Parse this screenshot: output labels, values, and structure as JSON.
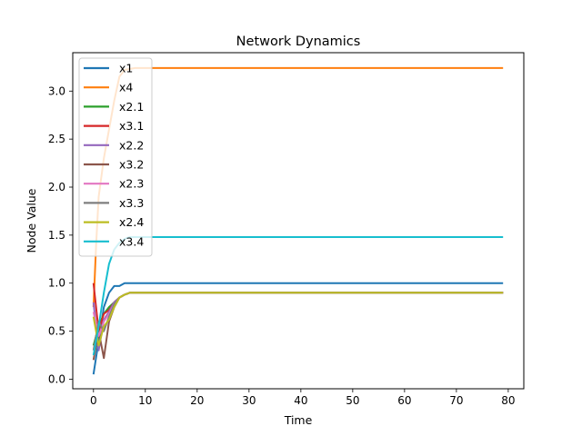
{
  "chart_data": {
    "type": "line",
    "title": "Network Dynamics",
    "xlabel": "Time",
    "ylabel": "Node Value",
    "xlim": [
      -4,
      83
    ],
    "ylim": [
      -0.1,
      3.4
    ],
    "xticks": [
      0,
      10,
      20,
      30,
      40,
      50,
      60,
      70,
      80
    ],
    "yticks": [
      0.0,
      0.5,
      1.0,
      1.5,
      2.0,
      2.5,
      3.0
    ],
    "ytick_labels": [
      "0.0",
      "0.5",
      "1.0",
      "1.5",
      "2.0",
      "2.5",
      "3.0"
    ],
    "grid": false,
    "legend": "top-left",
    "series": [
      {
        "name": "x1",
        "color": "#1f77b4",
        "points": [
          [
            0,
            0.05
          ],
          [
            1,
            0.4
          ],
          [
            2,
            0.75
          ],
          [
            3,
            0.9
          ],
          [
            4,
            0.97
          ],
          [
            5,
            0.97
          ],
          [
            6,
            1.0
          ],
          [
            8,
            1.0
          ],
          [
            79,
            1.0
          ]
        ]
      },
      {
        "name": "x4",
        "color": "#ff7f0e",
        "points": [
          [
            0,
            0.75
          ],
          [
            0.5,
            1.4
          ],
          [
            1,
            1.9
          ],
          [
            2,
            2.3
          ],
          [
            3,
            2.6
          ],
          [
            4,
            2.9
          ],
          [
            5,
            3.15
          ],
          [
            6,
            3.22
          ],
          [
            8,
            3.24
          ],
          [
            79,
            3.24
          ]
        ]
      },
      {
        "name": "x2.1",
        "color": "#2ca02c",
        "points": [
          [
            0,
            0.35
          ],
          [
            1,
            0.55
          ],
          [
            2,
            0.68
          ],
          [
            3,
            0.75
          ],
          [
            4,
            0.8
          ],
          [
            5,
            0.85
          ],
          [
            6,
            0.88
          ],
          [
            7,
            0.9
          ],
          [
            8,
            0.9
          ],
          [
            79,
            0.9
          ]
        ]
      },
      {
        "name": "x3.1",
        "color": "#d62728",
        "points": [
          [
            0,
            1.0
          ],
          [
            1,
            0.5
          ],
          [
            2,
            0.68
          ],
          [
            3,
            0.72
          ],
          [
            4,
            0.8
          ],
          [
            5,
            0.85
          ],
          [
            6,
            0.88
          ],
          [
            7,
            0.9
          ],
          [
            79,
            0.9
          ]
        ]
      },
      {
        "name": "x2.2",
        "color": "#9467bd",
        "points": [
          [
            0,
            0.8
          ],
          [
            1,
            0.3
          ],
          [
            2,
            0.62
          ],
          [
            3,
            0.7
          ],
          [
            4,
            0.8
          ],
          [
            5,
            0.85
          ],
          [
            6,
            0.88
          ],
          [
            7,
            0.9
          ],
          [
            79,
            0.9
          ]
        ]
      },
      {
        "name": "x3.2",
        "color": "#8c564b",
        "points": [
          [
            0,
            0.2
          ],
          [
            1,
            0.5
          ],
          [
            2,
            0.22
          ],
          [
            3,
            0.6
          ],
          [
            4,
            0.75
          ],
          [
            5,
            0.85
          ],
          [
            6,
            0.88
          ],
          [
            7,
            0.9
          ],
          [
            79,
            0.9
          ]
        ]
      },
      {
        "name": "x2.3",
        "color": "#e377c2",
        "points": [
          [
            0,
            0.7
          ],
          [
            1,
            0.45
          ],
          [
            2,
            0.6
          ],
          [
            3,
            0.68
          ],
          [
            4,
            0.78
          ],
          [
            5,
            0.85
          ],
          [
            6,
            0.88
          ],
          [
            7,
            0.9
          ],
          [
            79,
            0.9
          ]
        ]
      },
      {
        "name": "x3.3",
        "color": "#7f7f7f",
        "points": [
          [
            0,
            0.3
          ],
          [
            1,
            0.6
          ],
          [
            2,
            0.5
          ],
          [
            3,
            0.65
          ],
          [
            4,
            0.78
          ],
          [
            5,
            0.85
          ],
          [
            6,
            0.88
          ],
          [
            7,
            0.9
          ],
          [
            79,
            0.9
          ]
        ]
      },
      {
        "name": "x2.4",
        "color": "#bcbd22",
        "points": [
          [
            0,
            0.65
          ],
          [
            1,
            0.35
          ],
          [
            2,
            0.55
          ],
          [
            3,
            0.62
          ],
          [
            4,
            0.75
          ],
          [
            5,
            0.85
          ],
          [
            6,
            0.88
          ],
          [
            7,
            0.9
          ],
          [
            79,
            0.9
          ]
        ]
      },
      {
        "name": "x3.4",
        "color": "#17becf",
        "points": [
          [
            0,
            0.25
          ],
          [
            1,
            0.55
          ],
          [
            2,
            0.9
          ],
          [
            3,
            1.2
          ],
          [
            4,
            1.35
          ],
          [
            5,
            1.42
          ],
          [
            6,
            1.46
          ],
          [
            7,
            1.48
          ],
          [
            79,
            1.48
          ]
        ]
      }
    ]
  }
}
